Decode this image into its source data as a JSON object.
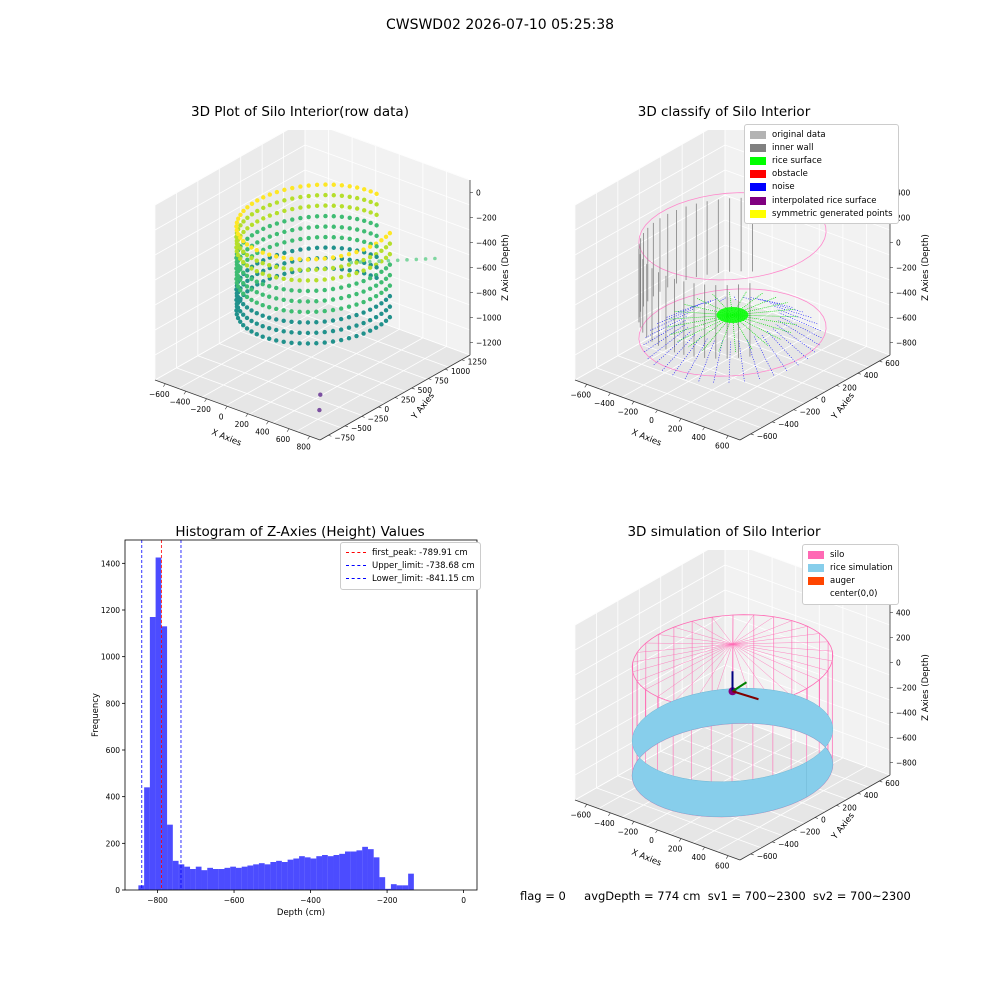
{
  "suptitle": "CWSWD02 2026-07-10 05:25:38",
  "panels": {
    "raw": {
      "title": "3D Plot of Silo Interior(row data)",
      "xlabel": "X Axies",
      "ylabel": "Y Axies",
      "zlabel": "Z Axies (Depth)",
      "xticks": [
        "−600",
        "−400",
        "−200",
        "0",
        "200",
        "400",
        "600",
        "800"
      ],
      "yticks": [
        "−750",
        "−500",
        "−250",
        "0",
        "250",
        "500",
        "750",
        "1000",
        "1250"
      ],
      "zticks": [
        "0",
        "−200",
        "−400",
        "−600",
        "−800",
        "−1000",
        "−1200"
      ]
    },
    "classify": {
      "title": "3D classify of Silo Interior",
      "xlabel": "X Axies",
      "ylabel": "Y Axies",
      "zlabel": "Z Axies (Depth)",
      "xticks": [
        "−600",
        "−400",
        "−200",
        "0",
        "200",
        "400",
        "600"
      ],
      "yticks": [
        "−600",
        "−400",
        "−200",
        "0",
        "200",
        "400",
        "600"
      ],
      "zticks": [
        "400",
        "200",
        "0",
        "−200",
        "−400",
        "−600",
        "−800"
      ],
      "legend": [
        {
          "label": "original data",
          "color": "#b3b3b3"
        },
        {
          "label": "inner wall",
          "color": "#808080"
        },
        {
          "label": "rice surface",
          "color": "#00ff00"
        },
        {
          "label": "obstacle",
          "color": "#ff0000"
        },
        {
          "label": "noise",
          "color": "#0000ff"
        },
        {
          "label": "interpolated rice surface",
          "color": "#800080"
        },
        {
          "label": "symmetric generated points",
          "color": "#ffff00"
        }
      ]
    },
    "simulation": {
      "title": "3D simulation of Silo Interior",
      "xlabel": "X Axies",
      "ylabel": "Y Axies",
      "zlabel": "Z Axies (Depth)",
      "xticks": [
        "−600",
        "−400",
        "−200",
        "0",
        "200",
        "400",
        "600"
      ],
      "yticks": [
        "−600",
        "−400",
        "−200",
        "0",
        "200",
        "400",
        "600"
      ],
      "zticks": [
        "400",
        "200",
        "0",
        "−200",
        "−400",
        "−600",
        "−800"
      ],
      "legend": [
        {
          "label": "silo",
          "color": "#ff69b4"
        },
        {
          "label": "rice simulation",
          "color": "#87ceeb"
        },
        {
          "label": "auger",
          "color": "#ff4500"
        },
        {
          "label": "center(0,0)",
          "color": ""
        }
      ]
    }
  },
  "status": {
    "flag": "flag = 0",
    "avg": "avgDepth = 774 cm",
    "sv1": "sv1 = 700~2300",
    "sv2": "sv2 = 700~2300"
  },
  "chart_data": {
    "type": "bar",
    "title": "Histogram of Z-Axies (Height) Values",
    "xlabel": "Depth (cm)",
    "ylabel": "Frequency",
    "xlim": [
      -885,
      35
    ],
    "ylim": [
      0,
      1500
    ],
    "xticks": [
      -800,
      -600,
      -400,
      -200,
      0
    ],
    "yticks": [
      0,
      200,
      400,
      600,
      800,
      1000,
      1200,
      1400
    ],
    "bin_width": 15,
    "bin_start": -850,
    "values": [
      20,
      440,
      1170,
      1425,
      1130,
      280,
      125,
      110,
      100,
      90,
      100,
      85,
      95,
      90,
      90,
      95,
      100,
      95,
      100,
      105,
      110,
      115,
      110,
      120,
      125,
      120,
      130,
      135,
      145,
      140,
      135,
      145,
      150,
      145,
      150,
      155,
      165,
      165,
      170,
      185,
      175,
      140,
      55,
      5,
      25,
      20,
      20,
      70
    ],
    "bar_color": "#0000ff",
    "lines": [
      {
        "label": "first_peak: -789.91 cm",
        "x": -789.91,
        "color": "#ff0000"
      },
      {
        "label": "Upper_limit: -738.68 cm",
        "x": -738.68,
        "color": "#0000ff"
      },
      {
        "label": "Lower_limit: -841.15 cm",
        "x": -841.15,
        "color": "#0000ff"
      }
    ]
  }
}
